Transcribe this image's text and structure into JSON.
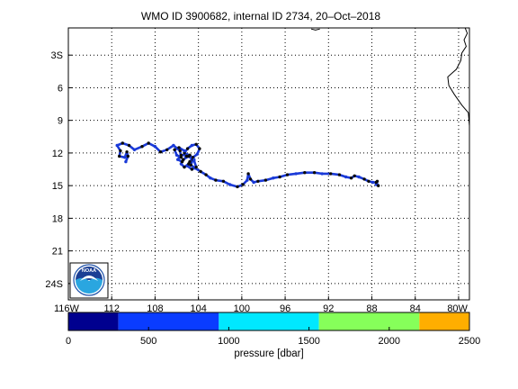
{
  "title": "WMO ID 3900682, internal ID 2734, 20–Oct–2018",
  "map": {
    "lon_ticks": [
      {
        "value": -116,
        "label": "116W"
      },
      {
        "value": -112,
        "label": "112"
      },
      {
        "value": -108,
        "label": "108"
      },
      {
        "value": -104,
        "label": "104"
      },
      {
        "value": -100,
        "label": "100"
      },
      {
        "value": -96,
        "label": "96"
      },
      {
        "value": -92,
        "label": "92"
      },
      {
        "value": -88,
        "label": "88"
      },
      {
        "value": -84,
        "label": "84"
      },
      {
        "value": -80,
        "label": "80W"
      }
    ],
    "lat_ticks": [
      {
        "value": -3,
        "label": "3S"
      },
      {
        "value": -6,
        "label": "6"
      },
      {
        "value": -9,
        "label": "9"
      },
      {
        "value": -12,
        "label": "12"
      },
      {
        "value": -15,
        "label": "15"
      },
      {
        "value": -18,
        "label": "18"
      },
      {
        "value": -21,
        "label": "21"
      },
      {
        "value": -24,
        "label": "24S"
      }
    ],
    "lon_range": [
      -116,
      -79
    ],
    "lat_range": [
      -25.5,
      -0.5
    ],
    "grid": true,
    "logo": {
      "name": "noaa-logo",
      "text": "NOAA",
      "location": "bottom-left"
    },
    "colors": {
      "track": "#0a0a0a",
      "track_blue": "#1a3ad8",
      "coast": "#000000",
      "grid": "#000000"
    },
    "coastline": [
      [
        -79.4,
        -0.5
      ],
      [
        -79.2,
        -1.0
      ],
      [
        -79.5,
        -1.6
      ],
      [
        -79.3,
        -2.2
      ],
      [
        -79.7,
        -2.8
      ],
      [
        -79.8,
        -3.5
      ],
      [
        -80.2,
        -4.3
      ],
      [
        -81.0,
        -5.0
      ],
      [
        -80.9,
        -5.8
      ],
      [
        -80.4,
        -6.6
      ],
      [
        -79.7,
        -7.6
      ],
      [
        -79.1,
        -8.3
      ],
      [
        -79.0,
        -9.5
      ]
    ],
    "islands": [
      [
        [
          -93.6,
          -0.6
        ],
        [
          -93.2,
          -0.7
        ],
        [
          -92.8,
          -0.6
        ]
      ]
    ],
    "track": [
      [
        -87.5,
        -14.6
      ],
      [
        -87.6,
        -14.9
      ],
      [
        -87.4,
        -15.0
      ],
      [
        -87.6,
        -14.7
      ],
      [
        -87.9,
        -14.7
      ],
      [
        -88.3,
        -14.6
      ],
      [
        -88.7,
        -14.4
      ],
      [
        -89.2,
        -14.2
      ],
      [
        -89.6,
        -14.1
      ],
      [
        -89.9,
        -14.3
      ],
      [
        -90.4,
        -14.2
      ],
      [
        -91.0,
        -14.0
      ],
      [
        -91.8,
        -13.9
      ],
      [
        -92.6,
        -13.9
      ],
      [
        -93.3,
        -13.8
      ],
      [
        -94.2,
        -13.8
      ],
      [
        -95.0,
        -13.9
      ],
      [
        -95.8,
        -14.0
      ],
      [
        -96.5,
        -14.2
      ],
      [
        -97.1,
        -14.3
      ],
      [
        -97.8,
        -14.5
      ],
      [
        -98.5,
        -14.6
      ],
      [
        -98.9,
        -14.7
      ],
      [
        -99.2,
        -14.4
      ],
      [
        -99.4,
        -13.9
      ],
      [
        -99.5,
        -14.5
      ],
      [
        -99.9,
        -14.9
      ],
      [
        -100.4,
        -15.1
      ],
      [
        -101.1,
        -14.9
      ],
      [
        -101.7,
        -14.6
      ],
      [
        -102.4,
        -14.5
      ],
      [
        -102.9,
        -14.3
      ],
      [
        -103.3,
        -14.0
      ],
      [
        -103.8,
        -13.7
      ],
      [
        -104.3,
        -13.4
      ],
      [
        -104.7,
        -13.1
      ],
      [
        -104.5,
        -12.6
      ],
      [
        -104.9,
        -12.2
      ],
      [
        -105.3,
        -12.0
      ],
      [
        -105.0,
        -11.6
      ],
      [
        -104.6,
        -11.3
      ],
      [
        -104.2,
        -11.2
      ],
      [
        -103.9,
        -11.6
      ],
      [
        -104.1,
        -12.1
      ],
      [
        -104.5,
        -12.4
      ],
      [
        -104.8,
        -12.8
      ],
      [
        -105.0,
        -13.2
      ],
      [
        -104.6,
        -13.5
      ],
      [
        -104.2,
        -13.3
      ],
      [
        -104.4,
        -12.7
      ],
      [
        -104.9,
        -12.3
      ],
      [
        -105.4,
        -12.6
      ],
      [
        -105.6,
        -13.0
      ],
      [
        -105.3,
        -13.3
      ],
      [
        -104.9,
        -13.0
      ],
      [
        -104.4,
        -12.6
      ],
      [
        -104.8,
        -12.2
      ],
      [
        -105.6,
        -12.2
      ],
      [
        -105.9,
        -12.6
      ],
      [
        -105.5,
        -12.8
      ],
      [
        -105.1,
        -12.3
      ],
      [
        -105.3,
        -11.8
      ],
      [
        -105.8,
        -11.5
      ],
      [
        -106.2,
        -11.7
      ],
      [
        -106.0,
        -12.2
      ],
      [
        -105.6,
        -12.4
      ],
      [
        -105.7,
        -11.8
      ],
      [
        -106.3,
        -11.3
      ],
      [
        -106.9,
        -11.7
      ],
      [
        -107.5,
        -11.9
      ],
      [
        -108.0,
        -11.4
      ],
      [
        -108.6,
        -11.1
      ],
      [
        -109.2,
        -11.4
      ],
      [
        -109.9,
        -11.7
      ],
      [
        -110.4,
        -11.3
      ],
      [
        -111.0,
        -11.1
      ],
      [
        -111.5,
        -11.3
      ],
      [
        -111.2,
        -11.8
      ],
      [
        -111.3,
        -12.3
      ],
      [
        -110.8,
        -12.4
      ],
      [
        -110.6,
        -11.9
      ],
      [
        -110.5,
        -12.3
      ],
      [
        -110.7,
        -12.8
      ]
    ]
  },
  "colorbar": {
    "label": "pressure [dbar]",
    "range": [
      0,
      2500
    ],
    "ticks": [
      {
        "value": 0,
        "label": "0"
      },
      {
        "value": 500,
        "label": "500"
      },
      {
        "value": 1000,
        "label": "1000"
      },
      {
        "value": 1500,
        "label": "1500"
      },
      {
        "value": 2000,
        "label": "2000"
      },
      {
        "value": 2500,
        "label": "2500"
      }
    ],
    "bands": [
      {
        "from": 0,
        "to": 312,
        "color": "#00008f"
      },
      {
        "from": 312,
        "to": 938,
        "color": "#0a3cff"
      },
      {
        "from": 938,
        "to": 1562,
        "color": "#00e8ff"
      },
      {
        "from": 1562,
        "to": 2188,
        "color": "#86ff5a"
      },
      {
        "from": 2188,
        "to": 2500,
        "color": "#ffae00"
      }
    ]
  }
}
